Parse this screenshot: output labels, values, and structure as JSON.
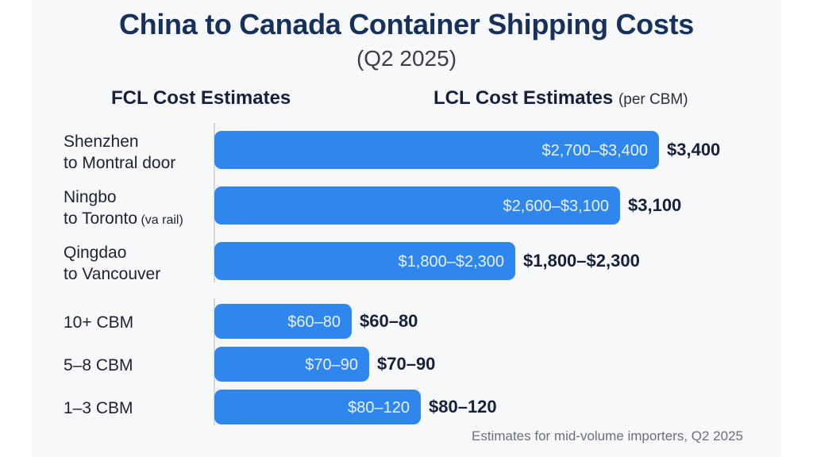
{
  "header": {
    "title": "China to Canada Container Shipping Costs",
    "subtitle": "(Q2 2025)"
  },
  "sections": {
    "fcl": "FCL Cost Estimates",
    "lcl": "LCL Cost Estimates",
    "lcl_unit": "(per CBM)"
  },
  "footnote": "Estimates for mid-volume importers, Q2 2025",
  "colors": {
    "bar": "#2f86ec",
    "title": "#17315a",
    "text": "#16203a"
  },
  "chart_data": {
    "type": "bar",
    "orientation": "horizontal",
    "groups": [
      {
        "name": "FCL Cost Estimates",
        "unit": "USD",
        "rows": [
          {
            "label_lines": [
              "Shenzhen",
              "to Montral  door"
            ],
            "low": 2700,
            "high": 3400,
            "bar_label": "$2,700–$3,400",
            "end_label": "$3,400"
          },
          {
            "label_lines": [
              "Ningbo",
              "to Toronto (va rail)"
            ],
            "low": 2600,
            "high": 3100,
            "bar_label": "$2,600–$3,100",
            "end_label": "$3,100"
          },
          {
            "label_lines": [
              "Qingdao",
              "to Vancouver"
            ],
            "low": 1800,
            "high": 2300,
            "bar_label": "$1,800–$2,300",
            "end_label": "$1,800–$2,300"
          }
        ]
      },
      {
        "name": "LCL Cost Estimates",
        "unit": "USD per CBM",
        "rows": [
          {
            "label_lines": [
              "10+ CBM"
            ],
            "low": 60,
            "high": 80,
            "bar_label": "$60–80",
            "end_label": "$60–80"
          },
          {
            "label_lines": [
              "5–8 CBM"
            ],
            "low": 70,
            "high": 90,
            "bar_label": "$70–90",
            "end_label": "$70–90"
          },
          {
            "label_lines": [
              "1–3 CBM"
            ],
            "low": 80,
            "high": 120,
            "bar_label": "$80–120",
            "end_label": "$80–120"
          }
        ]
      }
    ]
  }
}
